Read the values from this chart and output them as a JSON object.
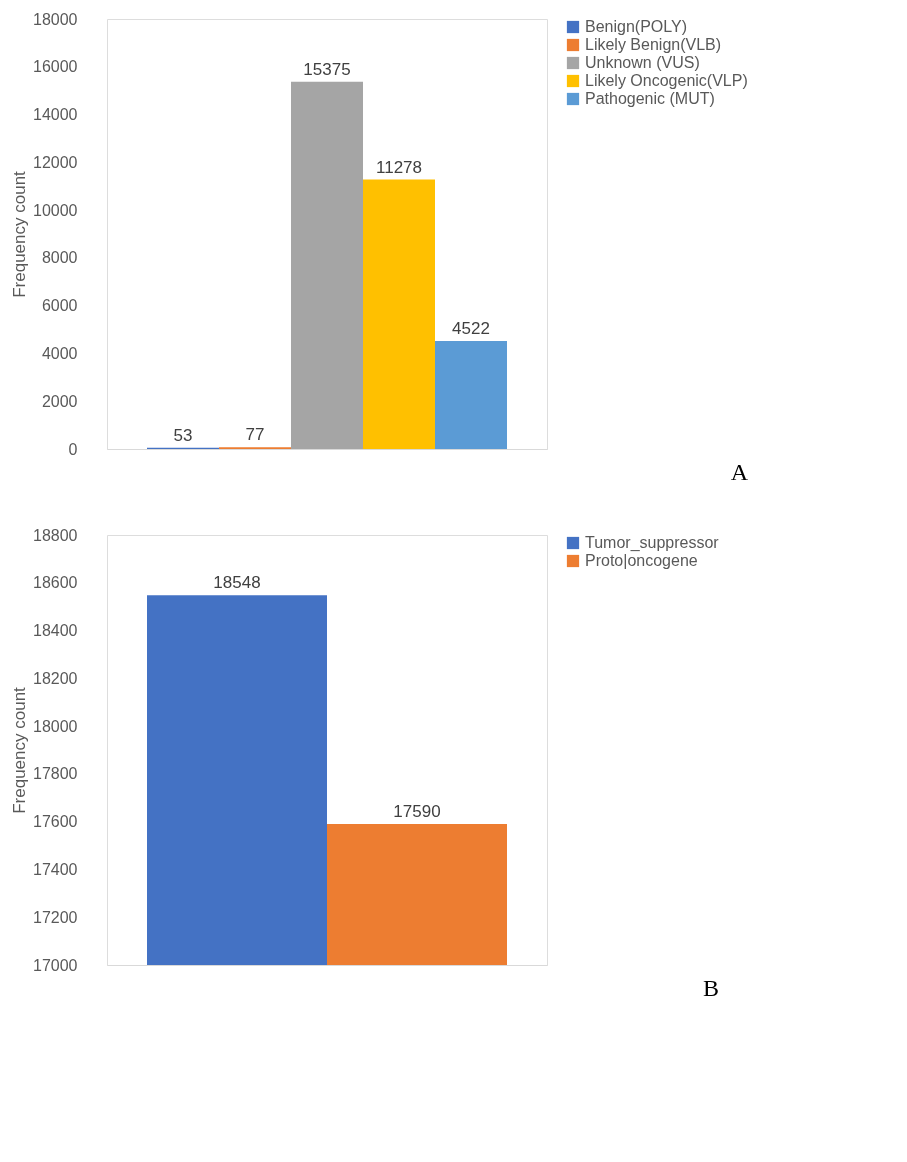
{
  "chart_data": [
    {
      "type": "bar",
      "ylabel": "Frequency count",
      "categories": [
        null
      ],
      "ylim": [
        0,
        18000
      ],
      "yticks": [
        0,
        2000,
        4000,
        6000,
        8000,
        10000,
        12000,
        14000,
        16000,
        18000
      ],
      "grid": false,
      "legend": "right",
      "data_labels": true,
      "annotations": [
        "A"
      ],
      "series": [
        {
          "name": "Benign(POLY)",
          "color": "#4472c4",
          "values": [
            53
          ]
        },
        {
          "name": "Likely Benign(VLB)",
          "color": "#ed7d31",
          "values": [
            77
          ]
        },
        {
          "name": "Unknown (VUS)",
          "color": "#a5a5a5",
          "values": [
            15375
          ]
        },
        {
          "name": "Likely Oncogenic(VLP)",
          "color": "#ffc000",
          "values": [
            11278
          ]
        },
        {
          "name": "Pathogenic (MUT)",
          "color": "#5b9bd5",
          "values": [
            4522
          ]
        }
      ]
    },
    {
      "type": "bar",
      "ylabel": "Frequency count",
      "categories": [
        null
      ],
      "ylim": [
        17000,
        18800
      ],
      "yticks": [
        17000,
        17200,
        17400,
        17600,
        17800,
        18000,
        18200,
        18400,
        18600,
        18800
      ],
      "grid": false,
      "legend": "right",
      "data_labels": true,
      "annotations": [
        "B"
      ],
      "series": [
        {
          "name": "Tumor_suppressor",
          "color": "#4472c4",
          "values": [
            18548
          ]
        },
        {
          "name": "Proto|oncogene",
          "color": "#ed7d31",
          "values": [
            17590
          ]
        }
      ]
    }
  ]
}
